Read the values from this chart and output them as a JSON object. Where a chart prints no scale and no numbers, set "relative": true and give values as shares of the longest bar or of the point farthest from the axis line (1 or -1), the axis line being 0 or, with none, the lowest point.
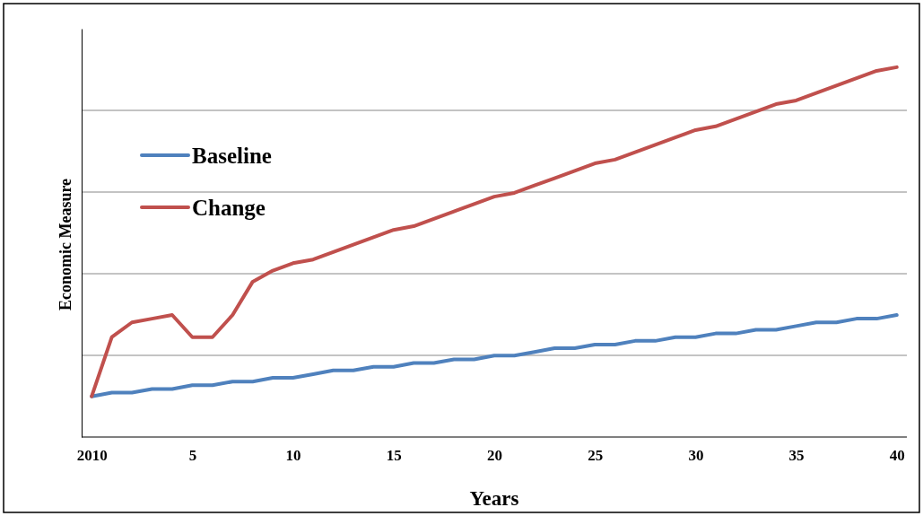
{
  "chart_data": {
    "type": "line",
    "xlabel": "Years",
    "ylabel": "Economic Measure",
    "relative": true,
    "grid": "y",
    "legend": "top left",
    "categories": [
      "2010",
      null,
      null,
      null,
      null,
      "5",
      null,
      null,
      null,
      null,
      "10",
      null,
      null,
      null,
      null,
      "15",
      null,
      null,
      null,
      null,
      "20",
      null,
      null,
      null,
      null,
      "25",
      null,
      null,
      null,
      null,
      "30",
      null,
      null,
      null,
      null,
      "35",
      null,
      null,
      null,
      null,
      "40"
    ],
    "series": [
      {
        "name": "Baseline",
        "color": "#4f81bd",
        "values": [
          0.11,
          0.12,
          0.12,
          0.13,
          0.13,
          0.14,
          0.14,
          0.15,
          0.15,
          0.16,
          0.16,
          0.17,
          0.18,
          0.18,
          0.19,
          0.19,
          0.2,
          0.2,
          0.21,
          0.21,
          0.22,
          0.22,
          0.23,
          0.24,
          0.24,
          0.25,
          0.25,
          0.26,
          0.26,
          0.27,
          0.27,
          0.28,
          0.28,
          0.29,
          0.29,
          0.3,
          0.31,
          0.31,
          0.32,
          0.32,
          0.33
        ]
      },
      {
        "name": "Change",
        "color": "#c0504d",
        "values": [
          0.11,
          0.27,
          0.31,
          0.32,
          0.33,
          0.27,
          0.27,
          0.33,
          0.42,
          0.45,
          0.47,
          0.48,
          0.5,
          0.52,
          0.54,
          0.56,
          0.57,
          0.59,
          0.61,
          0.63,
          0.65,
          0.66,
          0.68,
          0.7,
          0.72,
          0.74,
          0.75,
          0.77,
          0.79,
          0.81,
          0.83,
          0.84,
          0.86,
          0.88,
          0.9,
          0.91,
          0.93,
          0.95,
          0.97,
          0.99,
          1
        ]
      }
    ]
  }
}
